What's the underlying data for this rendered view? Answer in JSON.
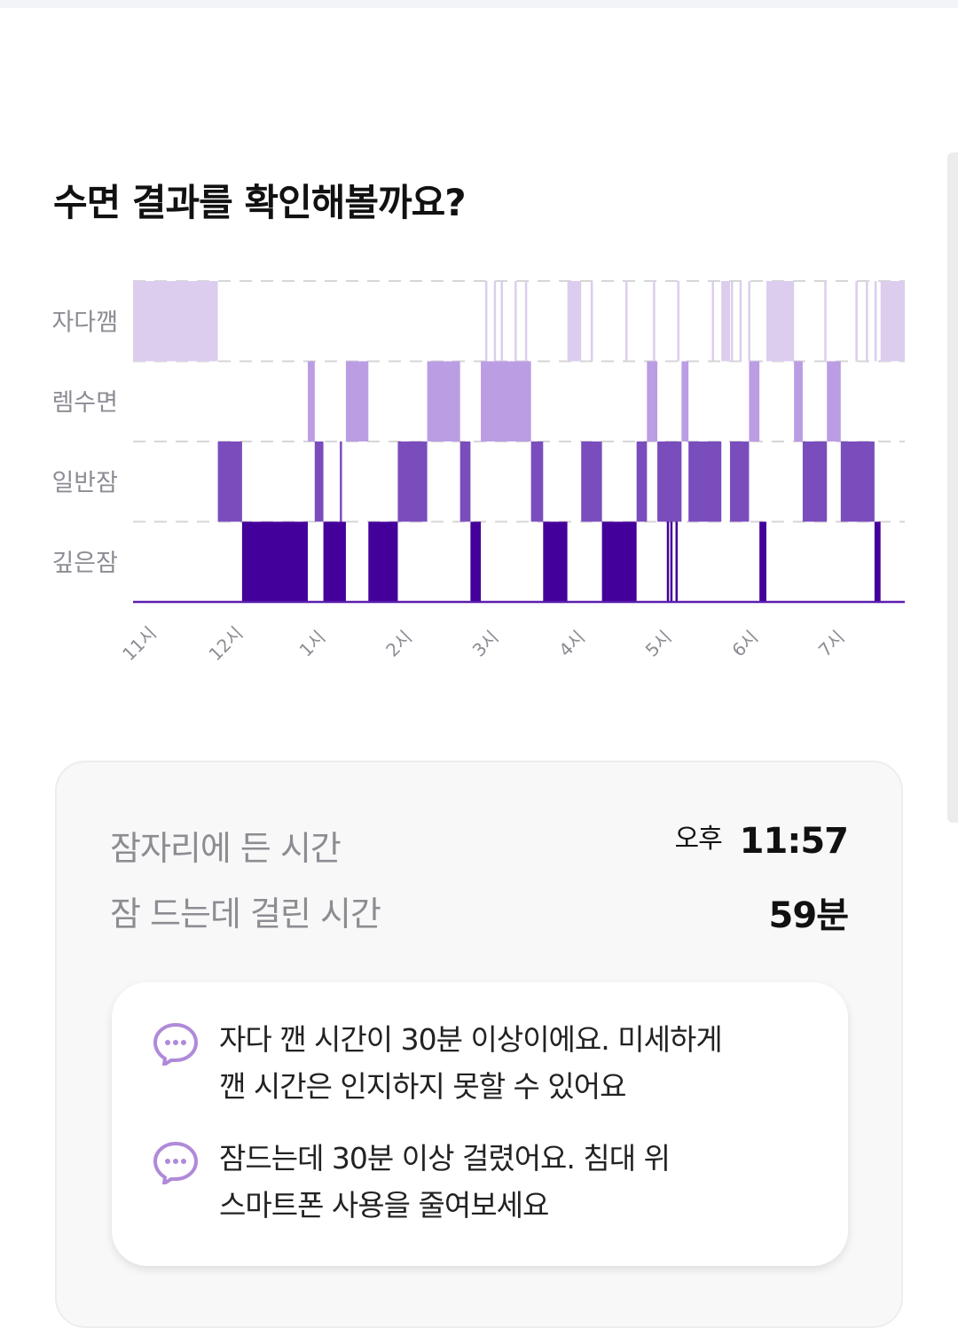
{
  "page_title": "수면 결과를 확인해볼까요?",
  "chart_data": {
    "type": "hypnogram",
    "stages": [
      "자다깸",
      "렘수면",
      "일반잠",
      "깊은잠"
    ],
    "x_ticks": [
      "11시",
      "12시",
      "1시",
      "2시",
      "3시",
      "4시",
      "5시",
      "6시",
      "7시"
    ],
    "x_range_hours": [
      23.0,
      31.92
    ],
    "segments": [
      {
        "stage": "자다깸",
        "start": 23.0,
        "end": 23.98
      },
      {
        "stage": "일반잠",
        "start": 23.98,
        "end": 24.26
      },
      {
        "stage": "깊은잠",
        "start": 24.26,
        "end": 25.02
      },
      {
        "stage": "렘수면",
        "start": 25.02,
        "end": 25.1
      },
      {
        "stage": "일반잠",
        "start": 25.1,
        "end": 25.2
      },
      {
        "stage": "깊은잠",
        "start": 25.2,
        "end": 25.46
      },
      {
        "stage": "렘수면",
        "start": 25.46,
        "end": 25.72
      },
      {
        "stage": "깊은잠",
        "start": 25.72,
        "end": 26.06
      },
      {
        "stage": "일반잠",
        "start": 26.06,
        "end": 26.4
      },
      {
        "stage": "렘수면",
        "start": 26.4,
        "end": 26.78
      },
      {
        "stage": "일반잠",
        "start": 26.78,
        "end": 26.9
      },
      {
        "stage": "깊은잠",
        "start": 26.9,
        "end": 27.02
      },
      {
        "stage": "렘수면",
        "start": 27.02,
        "end": 27.6
      },
      {
        "stage": "일반잠",
        "start": 27.6,
        "end": 27.74
      },
      {
        "stage": "깊은잠",
        "start": 27.74,
        "end": 28.02
      },
      {
        "stage": "자다깸",
        "start": 28.02,
        "end": 28.18
      },
      {
        "stage": "일반잠",
        "start": 28.18,
        "end": 28.42
      },
      {
        "stage": "깊은잠",
        "start": 28.42,
        "end": 28.82
      },
      {
        "stage": "일반잠",
        "start": 28.82,
        "end": 28.94
      },
      {
        "stage": "렘수면",
        "start": 28.94,
        "end": 29.06
      },
      {
        "stage": "일반잠",
        "start": 29.06,
        "end": 29.34
      },
      {
        "stage": "렘수면",
        "start": 29.34,
        "end": 29.42
      },
      {
        "stage": "일반잠",
        "start": 29.42,
        "end": 29.8
      },
      {
        "stage": "자다깸",
        "start": 29.8,
        "end": 29.9
      },
      {
        "stage": "일반잠",
        "start": 29.9,
        "end": 30.12
      },
      {
        "stage": "렘수면",
        "start": 30.12,
        "end": 30.24
      },
      {
        "stage": "깊은잠",
        "start": 30.24,
        "end": 30.32
      },
      {
        "stage": "자다깸",
        "start": 30.32,
        "end": 30.64
      },
      {
        "stage": "렘수면",
        "start": 30.64,
        "end": 30.74
      },
      {
        "stage": "일반잠",
        "start": 30.74,
        "end": 31.02
      },
      {
        "stage": "렘수면",
        "start": 31.02,
        "end": 31.18
      },
      {
        "stage": "일반잠",
        "start": 31.18,
        "end": 31.57
      },
      {
        "stage": "깊은잠",
        "start": 31.57,
        "end": 31.64
      },
      {
        "stage": "자다깸",
        "start": 31.64,
        "end": 31.92
      }
    ],
    "brief_wakes": [
      27.08,
      27.18,
      27.26,
      27.42,
      27.54,
      28.12,
      28.3,
      28.7,
      29.02,
      29.3,
      29.7,
      29.92,
      30.02,
      30.12,
      30.54,
      30.6,
      31.0,
      31.36,
      31.48,
      31.58,
      31.72
    ],
    "brief_rem": [
      27.22,
      27.5
    ],
    "brief_deep": [
      29.18,
      29.22,
      29.28
    ],
    "brief_light": [
      25.4,
      28.92,
      29.32
    ],
    "colors": {
      "wake": "#dccdee",
      "rem": "#bb9de4",
      "light": "#7a4dbd",
      "deep": "#44009a",
      "grid": "#d6d6d6",
      "baseline": "#5a1fae"
    }
  },
  "summary": {
    "bedtime_label": "잠자리에 든 시간",
    "bedtime_ampm": "오후",
    "bedtime_time": "11:57",
    "latency_label": "잠 드는데 걸린 시간",
    "latency_value": "59분"
  },
  "tips": [
    {
      "icon": "chat-bubble-icon",
      "line1": "자다 깬 시간이 30분 이상이에요. 미세하게",
      "line2": "깬 시간은 인지하지 못할 수 있어요"
    },
    {
      "icon": "chat-bubble-icon",
      "line1": "잠드는데 30분 이상 걸렸어요. 침대 위",
      "line2": "스마트폰 사용을 줄여보세요"
    }
  ]
}
